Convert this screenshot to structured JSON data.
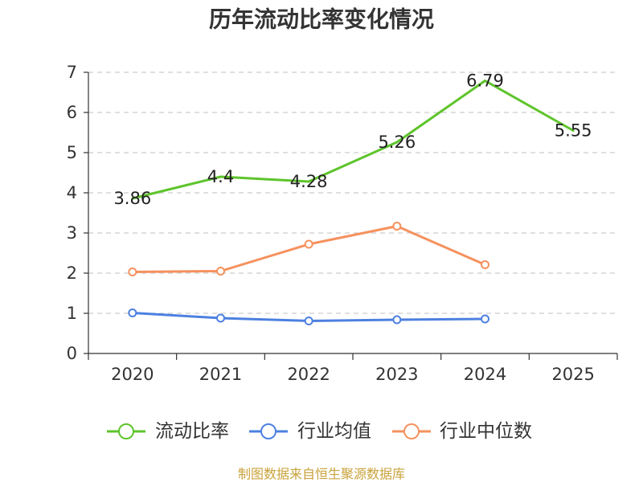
{
  "chart_data": {
    "type": "line",
    "title": "历年流动比率变化情况",
    "xlabel": "",
    "ylabel": "",
    "categories": [
      "2020",
      "2021",
      "2022",
      "2023",
      "2024",
      "2025"
    ],
    "yticks": [
      "0",
      "1",
      "2",
      "3",
      "4",
      "5",
      "6",
      "7"
    ],
    "ylim": [
      0,
      7
    ],
    "grid": true,
    "legend_position": "bottom",
    "series": [
      {
        "name": "流动比率",
        "color": "#5ec42c",
        "values": [
          3.86,
          4.4,
          4.28,
          5.26,
          6.79,
          5.55
        ],
        "show_labels": true,
        "markers": false
      },
      {
        "name": "行业均值",
        "color": "#4d80e0",
        "values": [
          1.01,
          0.88,
          0.81,
          0.84,
          0.86,
          null
        ],
        "show_labels": false,
        "markers": true
      },
      {
        "name": "行业中位数",
        "color": "#f5915e",
        "values": [
          2.03,
          2.05,
          2.72,
          3.17,
          2.21,
          null
        ],
        "show_labels": false,
        "markers": true
      }
    ]
  },
  "source_note": "制图数据来自恒生聚源数据库",
  "colors": {
    "source_note": "#c9a23a",
    "grid": "#cccccc",
    "axis": "#333333"
  }
}
